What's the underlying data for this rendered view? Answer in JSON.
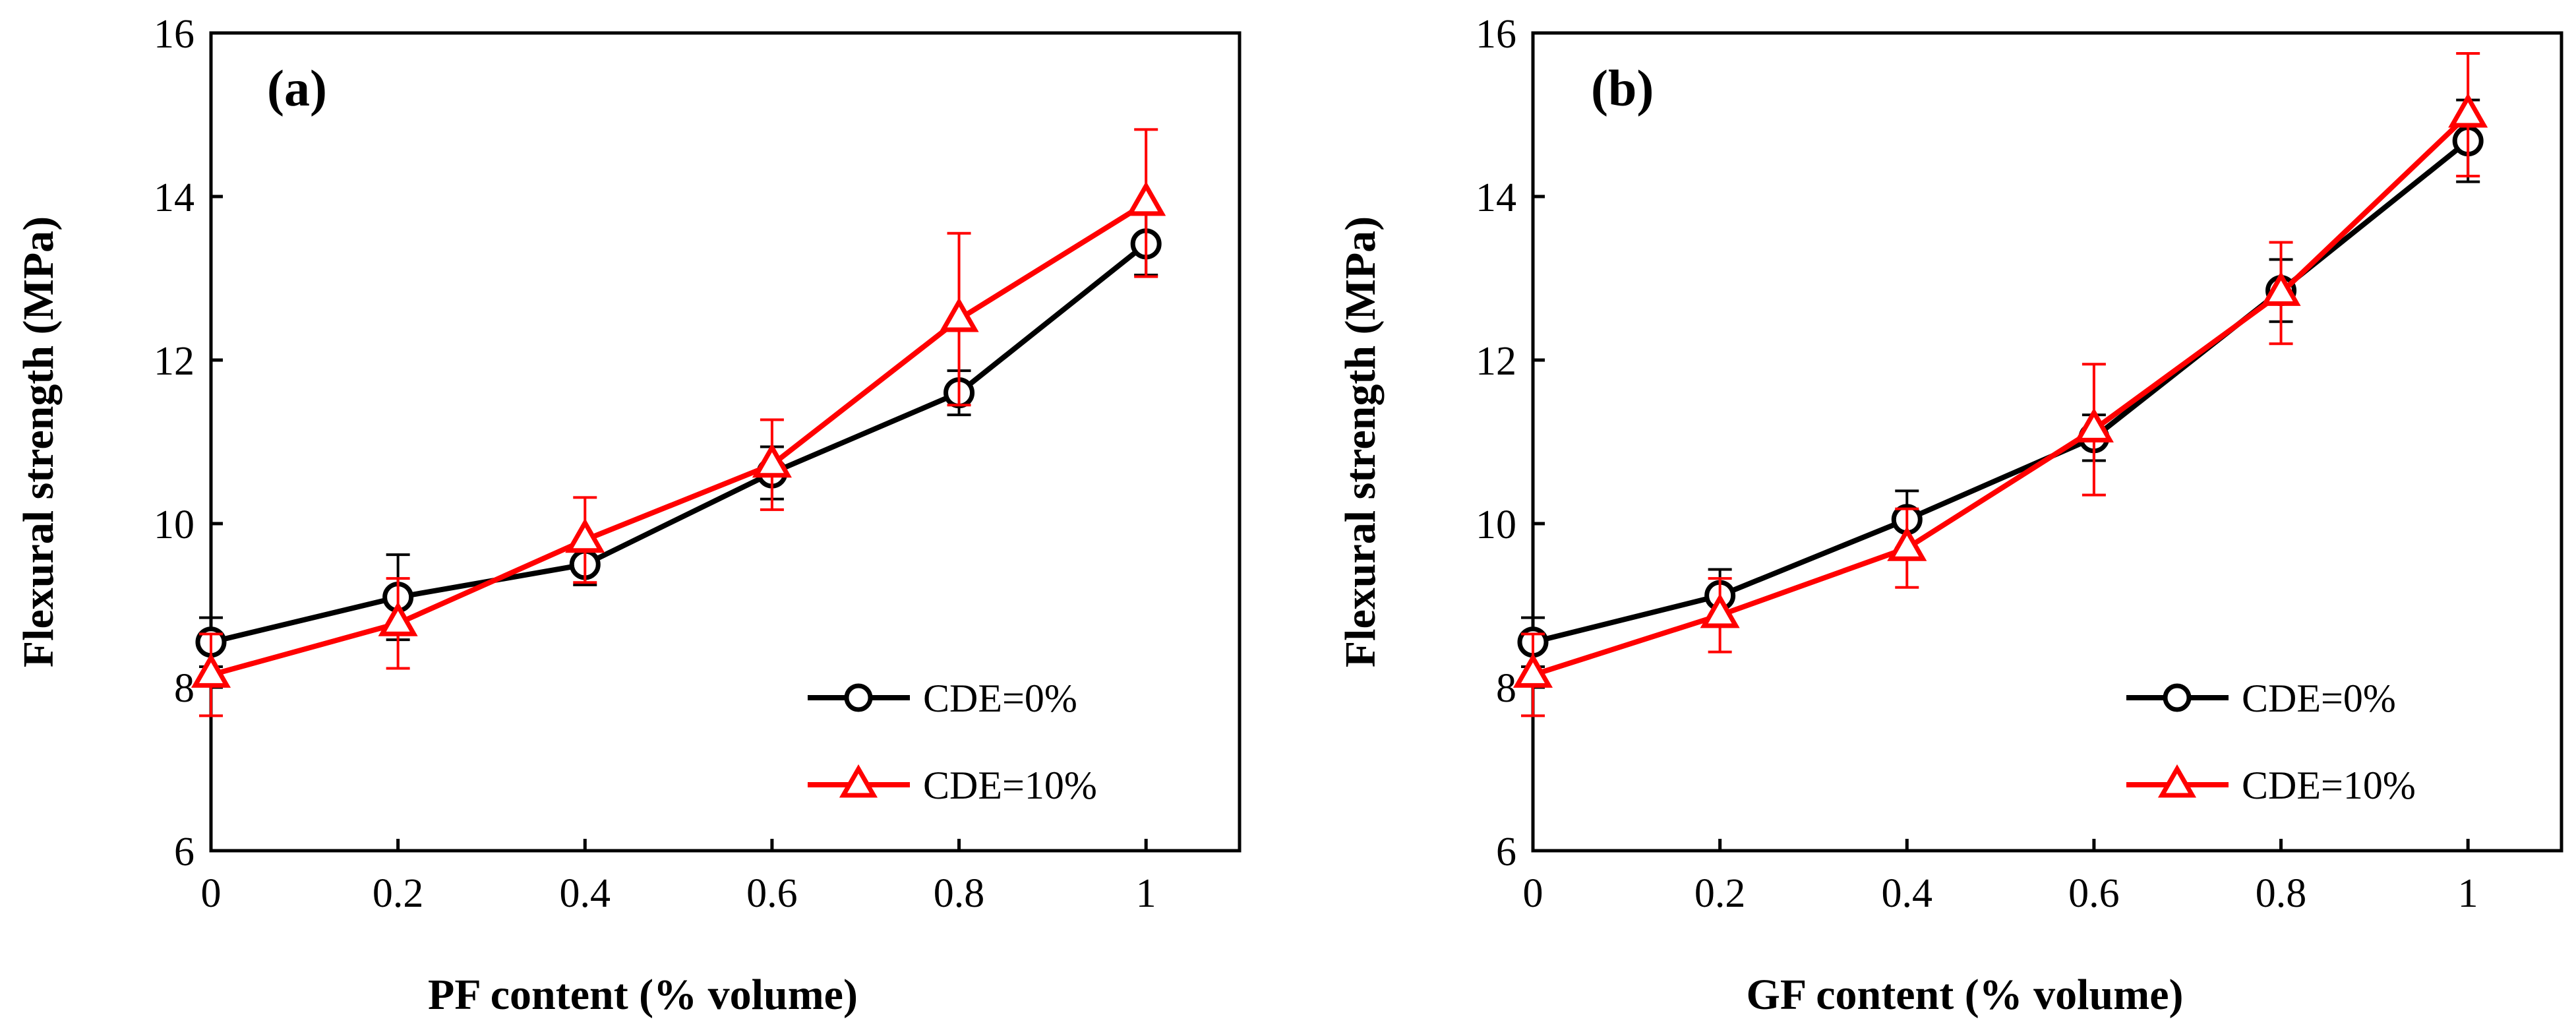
{
  "chart_data": [
    {
      "type": "line",
      "panel_label": "(a)",
      "xlabel": "PF content (% volume)",
      "ylabel": "Flexural strength (MPa)",
      "xlim": [
        0,
        1.1
      ],
      "ylim": [
        6,
        16
      ],
      "xticks": [
        0,
        0.2,
        0.4,
        0.6,
        0.8,
        1
      ],
      "xtick_labels": [
        "0",
        "0.2",
        "0.4",
        "0.6",
        "0.8",
        "1"
      ],
      "yticks": [
        6,
        8,
        10,
        12,
        14,
        16
      ],
      "ytick_labels": [
        "6",
        "8",
        "10",
        "12",
        "14",
        "16"
      ],
      "legend_position": "bottom-right",
      "series": [
        {
          "name": "CDE=0%",
          "marker": "circle",
          "color": "#000000",
          "x": [
            0,
            0.2,
            0.4,
            0.6,
            0.8,
            1
          ],
          "values": [
            8.55,
            9.1,
            9.5,
            10.62,
            11.6,
            13.42
          ],
          "errors": [
            0.3,
            0.52,
            0.25,
            0.32,
            0.27,
            0.38
          ]
        },
        {
          "name": "CDE=10%",
          "marker": "triangle",
          "color": "#ff0000",
          "x": [
            0,
            0.2,
            0.4,
            0.6,
            0.8,
            1
          ],
          "values": [
            8.15,
            8.78,
            9.8,
            10.72,
            12.5,
            13.92
          ],
          "errors": [
            0.5,
            0.55,
            0.52,
            0.55,
            1.05,
            0.9
          ]
        }
      ]
    },
    {
      "type": "line",
      "panel_label": "(b)",
      "xlabel": "GF content (% volume)",
      "ylabel": "Flexural strength (MPa)",
      "xlim": [
        0,
        1.1
      ],
      "ylim": [
        6,
        16
      ],
      "xticks": [
        0,
        0.2,
        0.4,
        0.6,
        0.8,
        1
      ],
      "xtick_labels": [
        "0",
        "0.2",
        "0.4",
        "0.6",
        "0.8",
        "1"
      ],
      "yticks": [
        6,
        8,
        10,
        12,
        14,
        16
      ],
      "ytick_labels": [
        "6",
        "8",
        "10",
        "12",
        "14",
        "16"
      ],
      "legend_position": "bottom-right",
      "series": [
        {
          "name": "CDE=0%",
          "marker": "circle",
          "color": "#000000",
          "x": [
            0,
            0.2,
            0.4,
            0.6,
            0.8,
            1
          ],
          "values": [
            8.55,
            9.12,
            10.05,
            11.05,
            12.85,
            14.68
          ],
          "errors": [
            0.3,
            0.32,
            0.35,
            0.28,
            0.38,
            0.5
          ]
        },
        {
          "name": "CDE=10%",
          "marker": "triangle",
          "color": "#ff0000",
          "x": [
            0,
            0.2,
            0.4,
            0.6,
            0.8,
            1
          ],
          "values": [
            8.15,
            8.88,
            9.7,
            11.15,
            12.82,
            15.0
          ],
          "errors": [
            0.5,
            0.45,
            0.48,
            0.8,
            0.62,
            0.75
          ]
        }
      ]
    }
  ]
}
